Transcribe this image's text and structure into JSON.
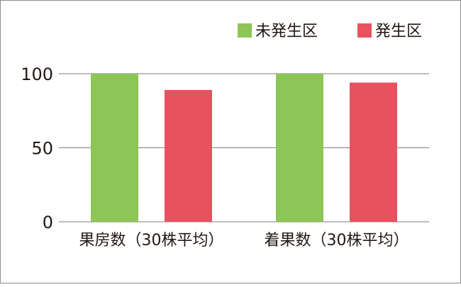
{
  "chart_data": {
    "type": "bar",
    "categories": [
      "果房数（30株平均）",
      "着果数（30株平均）"
    ],
    "series": [
      {
        "name": "未発生区",
        "values": [
          100,
          100
        ],
        "color": "#8dc556"
      },
      {
        "name": "発生区",
        "values": [
          89,
          94
        ],
        "color": "#e8525f"
      }
    ],
    "title": "",
    "xlabel": "",
    "ylabel": "",
    "ylim": [
      0,
      100
    ],
    "yticks": [
      0,
      50,
      100
    ],
    "ytick_labels": [
      "0",
      "50",
      "100"
    ],
    "grid": true,
    "legend_position": "top-right"
  }
}
